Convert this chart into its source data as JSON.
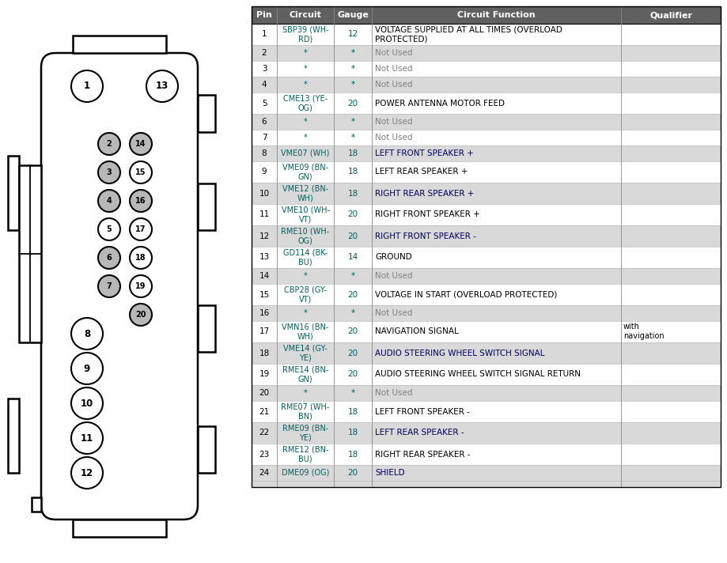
{
  "table_headers": [
    "Pin",
    "Circuit",
    "Gauge",
    "Circuit Function",
    "Qualifier"
  ],
  "rows": [
    {
      "pin": "1",
      "circuit": "SBP39 (WH-\nRD)",
      "gauge": "12",
      "function": "VOLTAGE SUPPLIED AT ALL TIMES (OVERLOAD\nPROTECTED)",
      "qualifier": "",
      "shaded": false
    },
    {
      "pin": "2",
      "circuit": "*",
      "gauge": "*",
      "function": "Not Used",
      "qualifier": "",
      "shaded": true
    },
    {
      "pin": "3",
      "circuit": "*",
      "gauge": "*",
      "function": "Not Used",
      "qualifier": "",
      "shaded": false
    },
    {
      "pin": "4",
      "circuit": "*",
      "gauge": "*",
      "function": "Not Used",
      "qualifier": "",
      "shaded": true
    },
    {
      "pin": "5",
      "circuit": "CME13 (YE-\nOG)",
      "gauge": "20",
      "function": "POWER ANTENNA MOTOR FEED",
      "qualifier": "",
      "shaded": false
    },
    {
      "pin": "6",
      "circuit": "*",
      "gauge": "*",
      "function": "Not Used",
      "qualifier": "",
      "shaded": true
    },
    {
      "pin": "7",
      "circuit": "*",
      "gauge": "*",
      "function": "Not Used",
      "qualifier": "",
      "shaded": false
    },
    {
      "pin": "8",
      "circuit": "VME07 (WH)",
      "gauge": "18",
      "function": "LEFT FRONT SPEAKER +",
      "qualifier": "",
      "shaded": true
    },
    {
      "pin": "9",
      "circuit": "VME09 (BN-\nGN)",
      "gauge": "18",
      "function": "LEFT REAR SPEAKER +",
      "qualifier": "",
      "shaded": false
    },
    {
      "pin": "10",
      "circuit": "VME12 (BN-\nWH)",
      "gauge": "18",
      "function": "RIGHT REAR SPEAKER +",
      "qualifier": "",
      "shaded": true
    },
    {
      "pin": "11",
      "circuit": "VME10 (WH-\nVT)",
      "gauge": "20",
      "function": "RIGHT FRONT SPEAKER +",
      "qualifier": "",
      "shaded": false
    },
    {
      "pin": "12",
      "circuit": "RME10 (WH-\nOG)",
      "gauge": "20",
      "function": "RIGHT FRONT SPEAKER -",
      "qualifier": "",
      "shaded": true
    },
    {
      "pin": "13",
      "circuit": "GD114 (BK-\nBU)",
      "gauge": "14",
      "function": "GROUND",
      "qualifier": "",
      "shaded": false
    },
    {
      "pin": "14",
      "circuit": "*",
      "gauge": "*",
      "function": "Not Used",
      "qualifier": "",
      "shaded": true
    },
    {
      "pin": "15",
      "circuit": "CBP28 (GY-\nVT)",
      "gauge": "20",
      "function": "VOLTAGE IN START (OVERLOAD PROTECTED)",
      "qualifier": "",
      "shaded": false
    },
    {
      "pin": "16",
      "circuit": "*",
      "gauge": "*",
      "function": "Not Used",
      "qualifier": "",
      "shaded": true
    },
    {
      "pin": "17",
      "circuit": "VMN16 (BN-\nWH)",
      "gauge": "20",
      "function": "NAVIGATION SIGNAL",
      "qualifier": "with\nnavigation",
      "shaded": false
    },
    {
      "pin": "18",
      "circuit": "VME14 (GY-\nYE)",
      "gauge": "20",
      "function": "AUDIO STEERING WHEEL SWITCH SIGNAL",
      "qualifier": "",
      "shaded": true
    },
    {
      "pin": "19",
      "circuit": "RME14 (BN-\nGN)",
      "gauge": "20",
      "function": "AUDIO STEERING WHEEL SWITCH SIGNAL RETURN",
      "qualifier": "",
      "shaded": false
    },
    {
      "pin": "20",
      "circuit": "*",
      "gauge": "*",
      "function": "Not Used",
      "qualifier": "",
      "shaded": true
    },
    {
      "pin": "21",
      "circuit": "RME07 (WH-\nBN)",
      "gauge": "18",
      "function": "LEFT FRONT SPEAKER -",
      "qualifier": "",
      "shaded": false
    },
    {
      "pin": "22",
      "circuit": "RME09 (BN-\nYE)",
      "gauge": "18",
      "function": "LEFT REAR SPEAKER -",
      "qualifier": "",
      "shaded": true
    },
    {
      "pin": "23",
      "circuit": "RME12 (BN-\nBU)",
      "gauge": "18",
      "function": "RIGHT REAR SPEAKER -",
      "qualifier": "",
      "shaded": false
    },
    {
      "pin": "24",
      "circuit": "DME09 (OG)",
      "gauge": "20",
      "function": "SHIELD",
      "qualifier": "",
      "shaded": true
    }
  ],
  "shaded_color": "#d9d9d9",
  "white_color": "#ffffff",
  "header_bg": "#606060",
  "header_text_color": "#ffffff",
  "circuit_color": "#006060",
  "gauge_color": "#006060",
  "func_color_normal": "#000000",
  "func_color_shaded": "#000060",
  "func_color_not_used": "#808080",
  "qualifier_color": "#000000",
  "gray_pin_fill": "#b8b8b8",
  "white_pin_fill": "#ffffff",
  "pin_outline": "#000000",
  "connector_line": "#000000",
  "bg_color": "#ffffff"
}
